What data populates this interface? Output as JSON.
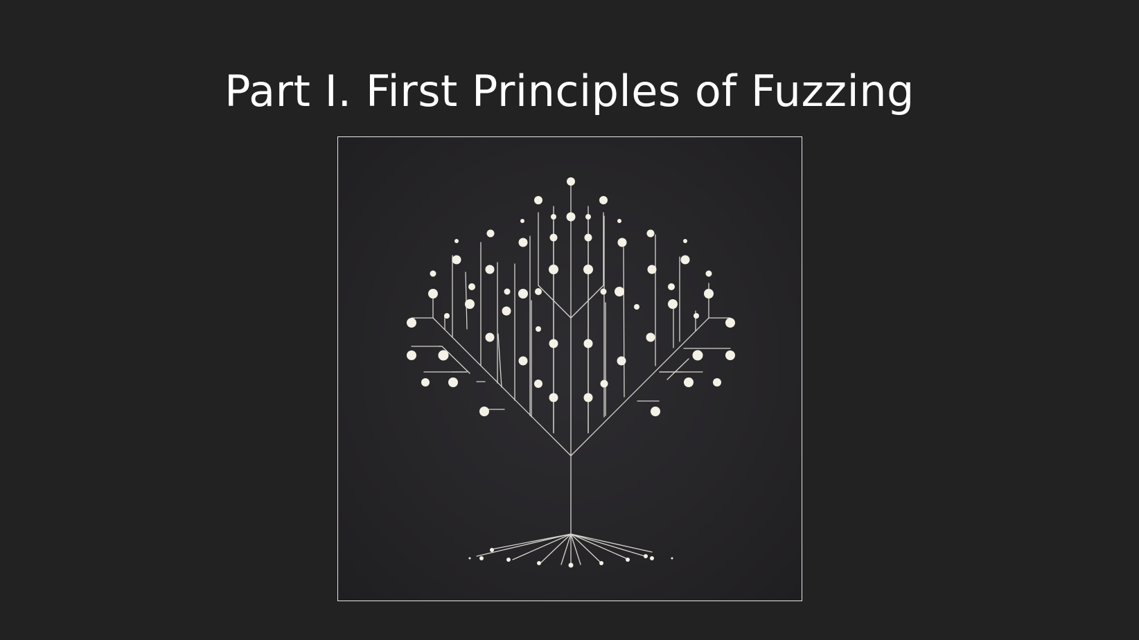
{
  "slide": {
    "title": "Part I. First Principles of Fuzzing"
  },
  "figure": {
    "illustration": "tree-icon",
    "line_color": "#d8d6d0",
    "node_color": "#f4f2e6",
    "background_color": "#28272a",
    "border_color": "#e8e8e8"
  }
}
